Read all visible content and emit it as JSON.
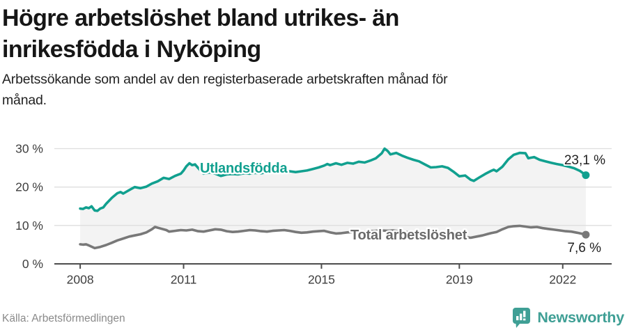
{
  "header": {
    "title_lines": [
      "Högre arbetslöshet bland utrikes- än",
      "inrikesfödda i Nyköping"
    ],
    "subtitle_lines": [
      "Arbetssökande som andel av den registerbaserade arbetskraften månad för",
      "månad."
    ]
  },
  "footer": {
    "source": "Källa: Arbetsförmedlingen",
    "brand_name": "Newsworthy",
    "brand_icon": "newsworthy-speech-bubble-bar-chart-icon"
  },
  "colors": {
    "accent_teal": "#11A08F",
    "series_gray": "#787878",
    "gray_label": "#6b6b6b",
    "band_fill": "#f3f3f3",
    "gridline": "#dedede",
    "axis": "#4d4d4d",
    "brand_teal": "#3f9f95",
    "title_text": "#161616"
  },
  "chart_data": {
    "type": "line",
    "title": "Högre arbetslöshet bland utrikes- än inrikesfödda i Nyköping",
    "subtitle": "Arbetssökande som andel av den registerbaserade arbetskraften månad för månad.",
    "unit": "%",
    "grid": "horizontal-only",
    "legend_position": "inline-line-labels",
    "xlim": [
      2007.25,
      2023.42
    ],
    "ylim": [
      0,
      30
    ],
    "x_ticks": [
      2008,
      2011,
      2015,
      2019,
      2022
    ],
    "x_tick_labels": [
      "2008",
      "2011",
      "2015",
      "2019",
      "2022"
    ],
    "y_ticks": [
      0,
      10,
      20,
      30
    ],
    "y_tick_labels": [
      "0 %",
      "10 %",
      "20 %",
      "30 %"
    ],
    "fill_between_series": true,
    "series": [
      {
        "name": "Utlandsfödda",
        "color": "#11A08F",
        "label_color": "#11A08F",
        "end_value": 23.1,
        "end_value_label": "23,1 %",
        "points": [
          [
            2008.0,
            14.4
          ],
          [
            2008.08,
            14.3
          ],
          [
            2008.17,
            14.7
          ],
          [
            2008.25,
            14.5
          ],
          [
            2008.33,
            15.0
          ],
          [
            2008.42,
            13.9
          ],
          [
            2008.5,
            13.8
          ],
          [
            2008.58,
            14.4
          ],
          [
            2008.67,
            14.7
          ],
          [
            2008.75,
            15.6
          ],
          [
            2008.92,
            17.2
          ],
          [
            2009.08,
            18.4
          ],
          [
            2009.17,
            18.7
          ],
          [
            2009.25,
            18.3
          ],
          [
            2009.42,
            19.2
          ],
          [
            2009.58,
            20.0
          ],
          [
            2009.75,
            19.7
          ],
          [
            2009.92,
            20.1
          ],
          [
            2010.08,
            20.9
          ],
          [
            2010.25,
            21.5
          ],
          [
            2010.42,
            22.4
          ],
          [
            2010.58,
            22.1
          ],
          [
            2010.75,
            22.9
          ],
          [
            2010.92,
            23.5
          ],
          [
            2011.0,
            24.3
          ],
          [
            2011.08,
            25.4
          ],
          [
            2011.17,
            26.2
          ],
          [
            2011.25,
            25.7
          ],
          [
            2011.33,
            25.9
          ],
          [
            2011.42,
            25.0
          ],
          [
            2011.5,
            24.2
          ],
          [
            2011.58,
            23.5
          ],
          [
            2011.75,
            23.8
          ],
          [
            2011.92,
            23.5
          ],
          [
            2012.08,
            22.9
          ],
          [
            2012.25,
            23.3
          ],
          [
            2012.42,
            23.4
          ],
          [
            2012.58,
            23.3
          ],
          [
            2012.75,
            23.6
          ],
          [
            2012.92,
            23.5
          ],
          [
            2013.08,
            23.7
          ],
          [
            2013.25,
            23.6
          ],
          [
            2013.42,
            23.9
          ],
          [
            2013.58,
            24.0
          ],
          [
            2013.75,
            23.8
          ],
          [
            2013.92,
            24.0
          ],
          [
            2014.08,
            24.1
          ],
          [
            2014.25,
            23.9
          ],
          [
            2014.42,
            24.1
          ],
          [
            2014.58,
            24.3
          ],
          [
            2014.75,
            24.7
          ],
          [
            2014.92,
            25.1
          ],
          [
            2015.08,
            25.6
          ],
          [
            2015.17,
            26.0
          ],
          [
            2015.25,
            25.7
          ],
          [
            2015.42,
            26.2
          ],
          [
            2015.58,
            25.8
          ],
          [
            2015.75,
            26.3
          ],
          [
            2015.92,
            26.1
          ],
          [
            2016.08,
            26.6
          ],
          [
            2016.25,
            26.4
          ],
          [
            2016.42,
            26.9
          ],
          [
            2016.58,
            27.5
          ],
          [
            2016.75,
            28.8
          ],
          [
            2016.83,
            30.0
          ],
          [
            2016.92,
            29.4
          ],
          [
            2017.0,
            28.5
          ],
          [
            2017.17,
            28.9
          ],
          [
            2017.33,
            28.2
          ],
          [
            2017.5,
            27.6
          ],
          [
            2017.67,
            27.1
          ],
          [
            2017.83,
            26.7
          ],
          [
            2018.0,
            25.9
          ],
          [
            2018.17,
            25.1
          ],
          [
            2018.33,
            25.2
          ],
          [
            2018.5,
            25.4
          ],
          [
            2018.67,
            25.0
          ],
          [
            2018.83,
            24.0
          ],
          [
            2019.0,
            22.8
          ],
          [
            2019.17,
            23.0
          ],
          [
            2019.33,
            21.9
          ],
          [
            2019.42,
            21.6
          ],
          [
            2019.58,
            22.5
          ],
          [
            2019.75,
            23.4
          ],
          [
            2019.92,
            24.2
          ],
          [
            2020.0,
            24.5
          ],
          [
            2020.08,
            24.1
          ],
          [
            2020.25,
            25.3
          ],
          [
            2020.42,
            27.2
          ],
          [
            2020.58,
            28.4
          ],
          [
            2020.75,
            28.9
          ],
          [
            2020.92,
            28.8
          ],
          [
            2021.0,
            27.5
          ],
          [
            2021.17,
            27.8
          ],
          [
            2021.33,
            27.1
          ],
          [
            2021.5,
            26.7
          ],
          [
            2021.67,
            26.3
          ],
          [
            2021.83,
            26.0
          ],
          [
            2022.0,
            25.7
          ],
          [
            2022.17,
            25.3
          ],
          [
            2022.33,
            24.9
          ],
          [
            2022.5,
            24.2
          ],
          [
            2022.58,
            23.7
          ],
          [
            2022.67,
            23.1
          ]
        ]
      },
      {
        "name": "Total arbetslöshet",
        "color": "#787878",
        "label_color": "#6b6b6b",
        "end_value": 7.6,
        "end_value_label": "7,6 %",
        "points": [
          [
            2008.0,
            5.1
          ],
          [
            2008.08,
            5.0
          ],
          [
            2008.17,
            5.1
          ],
          [
            2008.25,
            4.8
          ],
          [
            2008.42,
            4.1
          ],
          [
            2008.58,
            4.4
          ],
          [
            2008.75,
            4.9
          ],
          [
            2008.92,
            5.5
          ],
          [
            2009.08,
            6.1
          ],
          [
            2009.25,
            6.6
          ],
          [
            2009.42,
            7.1
          ],
          [
            2009.58,
            7.4
          ],
          [
            2009.75,
            7.7
          ],
          [
            2009.92,
            8.2
          ],
          [
            2010.08,
            9.0
          ],
          [
            2010.17,
            9.6
          ],
          [
            2010.33,
            9.2
          ],
          [
            2010.5,
            8.8
          ],
          [
            2010.58,
            8.4
          ],
          [
            2010.75,
            8.6
          ],
          [
            2010.92,
            8.8
          ],
          [
            2011.08,
            8.7
          ],
          [
            2011.25,
            8.9
          ],
          [
            2011.42,
            8.5
          ],
          [
            2011.58,
            8.4
          ],
          [
            2011.75,
            8.7
          ],
          [
            2011.92,
            9.0
          ],
          [
            2012.08,
            8.9
          ],
          [
            2012.25,
            8.5
          ],
          [
            2012.42,
            8.3
          ],
          [
            2012.58,
            8.4
          ],
          [
            2012.75,
            8.6
          ],
          [
            2012.92,
            8.8
          ],
          [
            2013.08,
            8.7
          ],
          [
            2013.25,
            8.5
          ],
          [
            2013.42,
            8.4
          ],
          [
            2013.58,
            8.6
          ],
          [
            2013.75,
            8.7
          ],
          [
            2013.92,
            8.8
          ],
          [
            2014.08,
            8.6
          ],
          [
            2014.25,
            8.3
          ],
          [
            2014.42,
            8.1
          ],
          [
            2014.58,
            8.2
          ],
          [
            2014.75,
            8.4
          ],
          [
            2014.92,
            8.5
          ],
          [
            2015.08,
            8.6
          ],
          [
            2015.25,
            8.2
          ],
          [
            2015.42,
            7.9
          ],
          [
            2015.58,
            8.0
          ],
          [
            2015.75,
            8.2
          ],
          [
            2015.92,
            8.3
          ],
          [
            2016.08,
            8.4
          ],
          [
            2016.25,
            8.3
          ],
          [
            2016.42,
            8.5
          ],
          [
            2016.58,
            8.6
          ],
          [
            2016.75,
            8.7
          ],
          [
            2016.92,
            8.6
          ],
          [
            2017.08,
            8.7
          ],
          [
            2017.25,
            8.5
          ],
          [
            2017.42,
            8.3
          ],
          [
            2017.58,
            8.2
          ],
          [
            2017.75,
            8.1
          ],
          [
            2017.92,
            8.0
          ],
          [
            2018.08,
            7.9
          ],
          [
            2018.25,
            7.7
          ],
          [
            2018.42,
            7.6
          ],
          [
            2018.58,
            7.5
          ],
          [
            2018.75,
            7.4
          ],
          [
            2018.92,
            7.2
          ],
          [
            2019.08,
            7.1
          ],
          [
            2019.25,
            6.9
          ],
          [
            2019.33,
            6.8
          ],
          [
            2019.5,
            7.1
          ],
          [
            2019.67,
            7.4
          ],
          [
            2019.83,
            7.8
          ],
          [
            2019.92,
            8.0
          ],
          [
            2020.08,
            8.3
          ],
          [
            2020.25,
            9.0
          ],
          [
            2020.42,
            9.6
          ],
          [
            2020.58,
            9.8
          ],
          [
            2020.75,
            9.9
          ],
          [
            2020.92,
            9.7
          ],
          [
            2021.08,
            9.5
          ],
          [
            2021.25,
            9.6
          ],
          [
            2021.42,
            9.3
          ],
          [
            2021.58,
            9.1
          ],
          [
            2021.75,
            8.9
          ],
          [
            2021.92,
            8.7
          ],
          [
            2022.08,
            8.5
          ],
          [
            2022.25,
            8.4
          ],
          [
            2022.42,
            8.1
          ],
          [
            2022.58,
            7.8
          ],
          [
            2022.67,
            7.6
          ]
        ]
      }
    ]
  }
}
